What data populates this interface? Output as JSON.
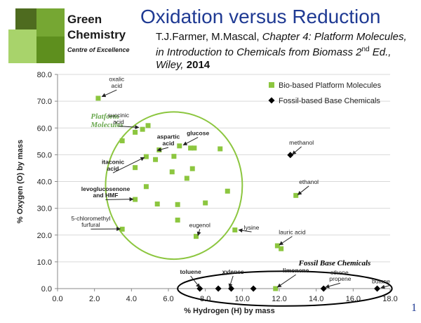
{
  "header": {
    "brand_line1": "Green",
    "brand_line2": "Chemistry",
    "brand_line3": "Centre of Excellence",
    "title": "Oxidation versus Reduction",
    "citation_authors": "T.J.Farmer, M.Mascal, ",
    "citation_italic_a": "Chapter 4: Platform Molecules, in Introduction to Chemicals from Biomass 2",
    "citation_sup": "nd",
    "citation_italic_b": " Ed., Wiley,",
    "citation_year": "2014",
    "slide_number": "1"
  },
  "colors": {
    "title": "#1f3a93",
    "bio": "#8cc63f",
    "fossil": "#000000",
    "circle": "#8cc63f",
    "annotation_green": "#6aa84f",
    "logo_dark": "#4e6b1f",
    "logo_mid": "#76a733",
    "logo_light": "#a8d36b"
  },
  "chart_data": {
    "type": "scatter",
    "xlabel": "% Hydrogen (H) by mass",
    "ylabel": "% Oxygen (O) by mass",
    "xlim": [
      0,
      18
    ],
    "ylim": [
      0,
      80
    ],
    "xticks": [
      "0.0",
      "2.0",
      "4.0",
      "6.0",
      "8.0",
      "10.0",
      "12.0",
      "14.0",
      "16.0",
      "18.0"
    ],
    "yticks": [
      "0.0",
      "10.0",
      "20.0",
      "30.0",
      "40.0",
      "50.0",
      "60.0",
      "70.0",
      "80.0"
    ],
    "legend_position": "top-right",
    "series": [
      {
        "name": "Bio-based Platform Molecules",
        "marker": "square",
        "points": [
          [
            2.2,
            71.1
          ],
          [
            3.5,
            55.2
          ],
          [
            4.2,
            58.4
          ],
          [
            4.6,
            59.5
          ],
          [
            4.9,
            60.9
          ],
          [
            4.8,
            49.3
          ],
          [
            5.5,
            51.8
          ],
          [
            4.2,
            45.2
          ],
          [
            5.3,
            48.2
          ],
          [
            6.3,
            49.4
          ],
          [
            6.6,
            53.3
          ],
          [
            7.2,
            52.5
          ],
          [
            7.4,
            52.5
          ],
          [
            8.8,
            52.2
          ],
          [
            6.2,
            43.6
          ],
          [
            7.0,
            41.2
          ],
          [
            7.3,
            44.8
          ],
          [
            4.8,
            38.1
          ],
          [
            4.2,
            33.3
          ],
          [
            5.4,
            31.6
          ],
          [
            6.5,
            31.4
          ],
          [
            8.0,
            32.0
          ],
          [
            9.2,
            36.4
          ],
          [
            6.5,
            25.6
          ],
          [
            3.5,
            22.2
          ],
          [
            7.5,
            19.5
          ],
          [
            9.6,
            21.9
          ],
          [
            12.9,
            34.8
          ],
          [
            11.9,
            16.0
          ],
          [
            12.1,
            14.9
          ],
          [
            11.8,
            0.0
          ]
        ]
      },
      {
        "name": "Fossil-based Base Chemicals",
        "marker": "diamond",
        "points": [
          [
            12.6,
            49.9
          ],
          [
            7.7,
            0.0
          ],
          [
            8.7,
            0.0
          ],
          [
            9.4,
            0.0
          ],
          [
            10.6,
            0.0
          ],
          [
            14.4,
            0.0
          ],
          [
            17.3,
            0.0
          ]
        ]
      }
    ],
    "annotations": [
      {
        "text": "oxalic\nacid",
        "x": 3.2,
        "y": 77.5,
        "tx": 2.4,
        "ty": 71.7
      },
      {
        "text": "succinic\nacid",
        "x": 3.3,
        "y": 64.0,
        "tx": 4.4,
        "ty": 60.2
      },
      {
        "text": "aspartic\nacid",
        "x": 6.0,
        "y": 56.0,
        "tx": 5.4,
        "ty": 51.6
      },
      {
        "text": "glucose",
        "x": 7.6,
        "y": 57.3,
        "tx": 6.8,
        "ty": 53.6
      },
      {
        "text": "itaconic\nacid",
        "x": 3.0,
        "y": 46.5,
        "tx": 4.7,
        "ty": 49.0
      },
      {
        "text": "levoglucosenone\nand HMF",
        "x": 2.6,
        "y": 36.5,
        "tx": 4.1,
        "ty": 33.4
      },
      {
        "text": "5-chloromethyl\nfurfural",
        "x": 1.8,
        "y": 25.5,
        "tx": 3.4,
        "ty": 22.3
      },
      {
        "text": "eugenol",
        "x": 7.7,
        "y": 23.0,
        "tx": 7.6,
        "ty": 19.8
      },
      {
        "text": "lysine",
        "x": 10.5,
        "y": 22.0,
        "tx": 9.8,
        "ty": 21.9
      },
      {
        "text": "methanol",
        "x": 13.2,
        "y": 53.8,
        "tx": 12.7,
        "ty": 50.1
      },
      {
        "text": "ethanol",
        "x": 13.6,
        "y": 39.1,
        "tx": 13.0,
        "ty": 35.0
      },
      {
        "text": "lauric acid",
        "x": 12.7,
        "y": 20.3,
        "tx": 12.0,
        "ty": 16.3
      },
      {
        "text": "toluene",
        "x": 7.2,
        "y": 5.5,
        "tx": 7.7,
        "ty": 0.4
      },
      {
        "text": "xylenes",
        "x": 9.5,
        "y": 5.5,
        "tx": 9.3,
        "ty": 0.4
      },
      {
        "text": "limonene",
        "x": 12.9,
        "y": 6.0,
        "tx": 11.9,
        "ty": 0.5
      },
      {
        "text": "ethene,\npropene",
        "x": 15.3,
        "y": 5.3,
        "tx": 14.5,
        "ty": 0.5
      },
      {
        "text": "butane",
        "x": 18.0,
        "y": 2.0,
        "tx": 17.5,
        "ty": 0.3
      }
    ],
    "group_labels": [
      {
        "text": "Platform\nMolecules",
        "x": 1.8,
        "y": 63.5
      },
      {
        "text": "Fossil Base Chemicals",
        "x": 15.0,
        "y": 8.7
      }
    ]
  }
}
